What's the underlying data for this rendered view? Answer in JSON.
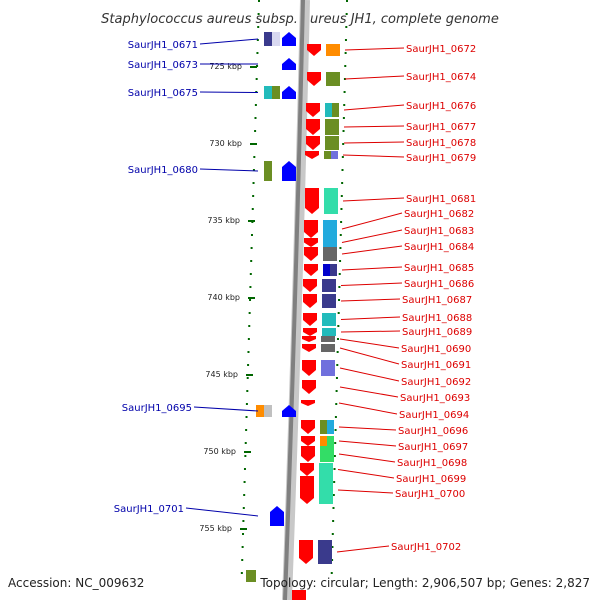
{
  "title": "Staphylococcus aureus subsp. aureus JH1, complete genome",
  "footer": {
    "accession": "Accession: NC_009632",
    "summary": "Topology: circular; Length: 2,906,507 bp; Genes: 2,827"
  },
  "colors": {
    "forward_label": "#0000aa",
    "reverse_label": "#dd0000",
    "forward_arrow": "#0000ff",
    "reverse_arrow": "#ff0000",
    "backbone": "#808080",
    "tick": "#006600"
  },
  "scale_labels": [
    "725 kbp",
    "730 kbp",
    "735 kbp",
    "740 kbp",
    "745 kbp",
    "750 kbp",
    "755 kbp"
  ],
  "forward_genes": [
    {
      "label": "SaurJH1_0671",
      "cog": [
        "#3a3a8c",
        "#d8d8f0"
      ]
    },
    {
      "label": "SaurJH1_0673",
      "cog": []
    },
    {
      "label": "SaurJH1_0675",
      "cog": [
        "#22bbbb",
        "#6b8e23"
      ]
    },
    {
      "label": "SaurJH1_0680",
      "cog": [
        "#6b8e23"
      ]
    },
    {
      "label": "SaurJH1_0695",
      "cog": [
        "#ff8c00",
        "#c0c0c0"
      ]
    },
    {
      "label": "SaurJH1_0701",
      "cog": []
    }
  ],
  "reverse_genes": [
    {
      "label": "SaurJH1_0672",
      "cog": [
        "#ff8c00"
      ]
    },
    {
      "label": "SaurJH1_0674",
      "cog": [
        "#6b8e23"
      ]
    },
    {
      "label": "SaurJH1_0676",
      "cog": [
        "#22bbbb",
        "#6b8e23"
      ]
    },
    {
      "label": "SaurJH1_0677",
      "cog": [
        "#6b8e23"
      ]
    },
    {
      "label": "SaurJH1_0678",
      "cog": [
        "#6b8e23"
      ]
    },
    {
      "label": "SaurJH1_0679",
      "cog": [
        "#6b8e23",
        "#7070dd"
      ]
    },
    {
      "label": "SaurJH1_0681",
      "cog": [
        "#33ddaa"
      ]
    },
    {
      "label": "SaurJH1_0682",
      "cog": [
        "#22aadd"
      ]
    },
    {
      "label": "SaurJH1_0683",
      "cog": [
        "#22aadd"
      ]
    },
    {
      "label": "SaurJH1_0684",
      "cog": [
        "#666666"
      ]
    },
    {
      "label": "SaurJH1_0685",
      "cog": [
        "#0000cc",
        "#3a3a8c"
      ]
    },
    {
      "label": "SaurJH1_0686",
      "cog": [
        "#3a3a8c"
      ]
    },
    {
      "label": "SaurJH1_0687",
      "cog": [
        "#3a3a8c"
      ]
    },
    {
      "label": "SaurJH1_0688",
      "cog": [
        "#22bbbb"
      ]
    },
    {
      "label": "SaurJH1_0689",
      "cog": [
        "#22bbbb"
      ]
    },
    {
      "label": "SaurJH1_0690",
      "cog": [
        "#666666"
      ]
    },
    {
      "label": "SaurJH1_0691",
      "cog": [
        "#666666"
      ]
    },
    {
      "label": "SaurJH1_0692",
      "cog": [
        "#7070dd"
      ]
    },
    {
      "label": "SaurJH1_0693",
      "cog": []
    },
    {
      "label": "SaurJH1_0694",
      "cog": []
    },
    {
      "label": "SaurJH1_0696",
      "cog": [
        "#6b8e23",
        "#22aadd"
      ]
    },
    {
      "label": "SaurJH1_0697",
      "cog": [
        "#ff8c00",
        "#33dd66"
      ]
    },
    {
      "label": "SaurJH1_0698",
      "cog": [
        "#33dd66"
      ]
    },
    {
      "label": "SaurJH1_0699",
      "cog": [
        "#33ddaa"
      ]
    },
    {
      "label": "SaurJH1_0700",
      "cog": [
        "#33ddaa"
      ]
    },
    {
      "label": "SaurJH1_0702",
      "cog": [
        "#3a3a8c"
      ]
    }
  ]
}
